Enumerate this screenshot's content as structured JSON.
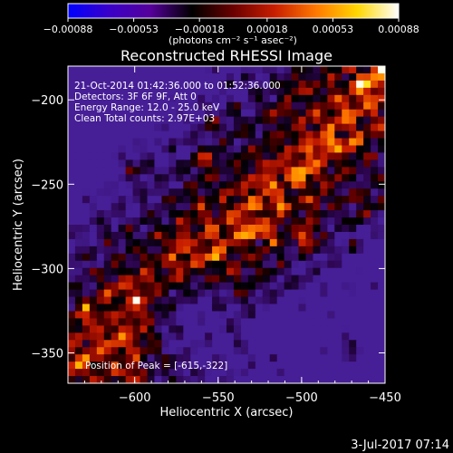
{
  "chart_data": {
    "type": "heatmap",
    "title": "Reconstructed RHESSI Image",
    "xlabel": "Heliocentric X (arcsec)",
    "ylabel": "Heliocentric Y (arcsec)",
    "xlim": [
      -640,
      -450
    ],
    "ylim": [
      -368,
      -180
    ],
    "xticks": [
      -600,
      -550,
      -500,
      -450
    ],
    "yticks": [
      -200,
      -250,
      -300,
      -350
    ],
    "xtick_labels": [
      "−600",
      "−550",
      "−500",
      "−450"
    ],
    "ytick_labels": [
      "−200",
      "−250",
      "−300",
      "−350"
    ],
    "colorbar": {
      "range": [
        -0.00088,
        0.00088
      ],
      "ticks": [
        -0.00088,
        -0.00053,
        -0.00018,
        0.00018,
        0.00053,
        0.00088
      ],
      "tick_labels": [
        "−0.00088",
        "−0.00053",
        "−0.00018",
        "0.00018",
        "0.00053",
        "0.00088"
      ],
      "unit_label": "(photons cm⁻² s⁻¹ asec⁻²)",
      "colormap": [
        "#0000ff",
        "#3a00c8",
        "#55009a",
        "#000000",
        "#6a0000",
        "#c81e00",
        "#ff7800",
        "#ffd700",
        "#ffffff"
      ]
    },
    "peak": {
      "x": -615,
      "y": -322
    },
    "grid": false
  },
  "annotations": {
    "line1": "21-Oct-2014 01:42:36.000 to 01:52:36.000",
    "line2": "Detectors: 3F 6F 9F, Att 0",
    "line3": "Energy Range: 12.0 - 25.0 keV",
    "line4": "Clean     Total counts: 2.97E+03",
    "peak_text": "Position of Peak = [-615,-322]"
  },
  "timestamp": "3-Jul-2017 07:14"
}
